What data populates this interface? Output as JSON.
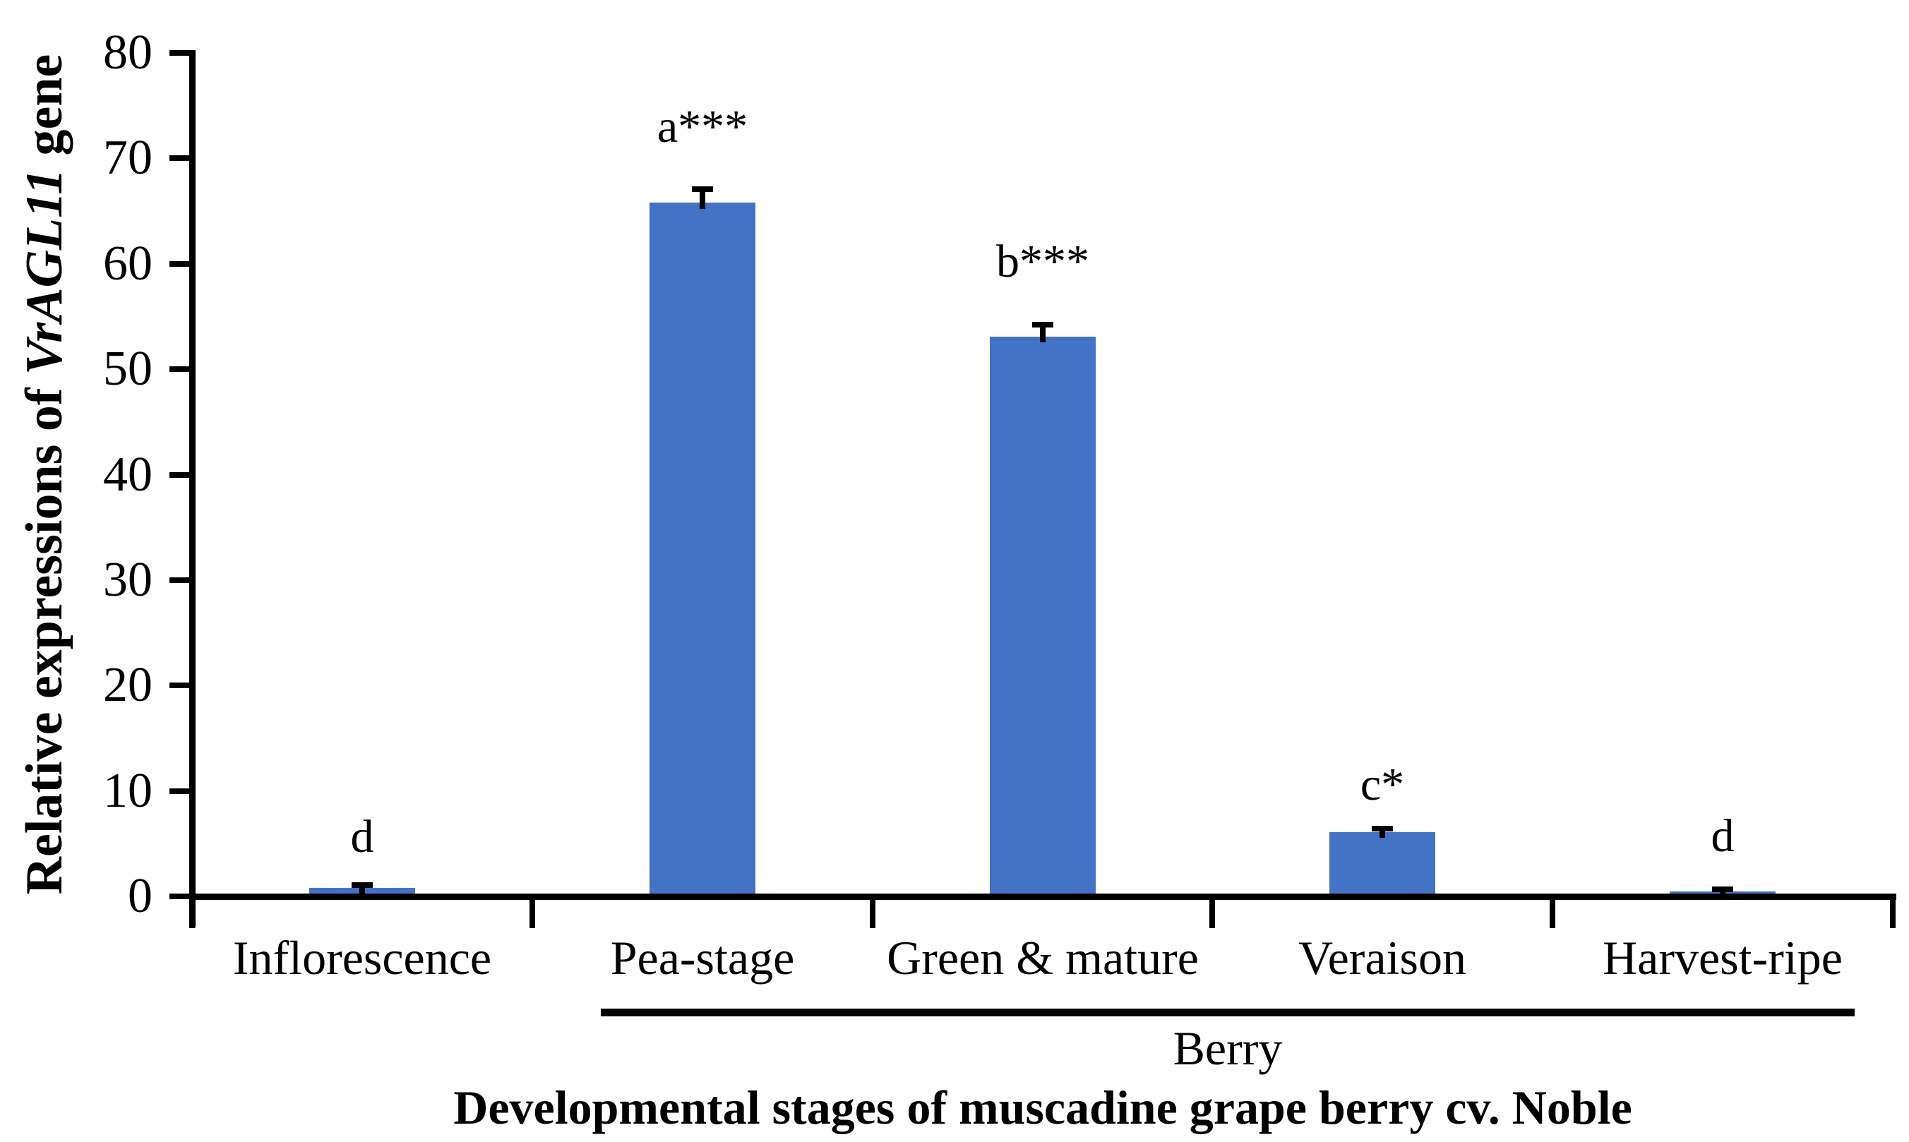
{
  "figure": {
    "background_color": "#ffffff",
    "axis_color": "#000000",
    "text_color": "#000000"
  },
  "chart_data": {
    "type": "bar",
    "categories": [
      "Inflorescence",
      "Pea-stage",
      "Green & mature",
      "Veraison",
      "Harvest-ripe"
    ],
    "values": [
      0.8,
      65.8,
      53.1,
      6.1,
      0.5
    ],
    "errors": [
      0.3,
      1.3,
      1.1,
      0.3,
      0.15
    ],
    "annotations": [
      "d",
      "a***",
      "b***",
      "c*",
      "d"
    ],
    "annotation_y": [
      5.6,
      73,
      60.2,
      10.6,
      5.7
    ],
    "bar_color": "#4472C4",
    "ylabel": "Relative expressions of VrAGL11 gene",
    "ylabel_prefix": "Relative expressions of ",
    "ylabel_italic": "VrAGL11",
    "ylabel_suffix": " gene",
    "xlabel": "Developmental stages of muscadine grape berry cv. Noble",
    "group_underline_label": "Berry",
    "group_underline_categories": [
      "Pea-stage",
      "Green & mature",
      "Veraison",
      "Harvest-ripe"
    ],
    "ylim": [
      0,
      80
    ],
    "yticks": [
      0,
      10,
      20,
      30,
      40,
      50,
      60,
      70,
      80
    ],
    "grid": false,
    "legend": "none"
  }
}
